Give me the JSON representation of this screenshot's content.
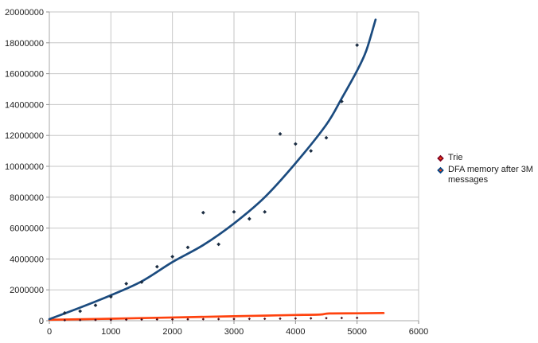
{
  "window": {
    "background": "#ffffff"
  },
  "chart_data": {
    "type": "scatter",
    "title": "",
    "xlabel": "",
    "ylabel": "",
    "x_axis": {
      "min": 0,
      "max": 6000,
      "tick_interval": 1000,
      "tick_labels": [
        "0",
        "1000",
        "2000",
        "3000",
        "4000",
        "5000",
        "6000"
      ]
    },
    "y_axis": {
      "min": 0,
      "max": 20000000,
      "tick_interval": 2000000,
      "tick_labels": [
        "0",
        "2000000",
        "4000000",
        "6000000",
        "8000000",
        "10000000",
        "12000000",
        "14000000",
        "16000000",
        "18000000",
        "20000000"
      ]
    },
    "grid": {
      "horizontal": true,
      "vertical": true,
      "color": "#c6c6c6",
      "axis_color": "#a9a9a9",
      "tick_color": "#8f8f8f",
      "label_color": "#1f1f1f"
    },
    "legend": {
      "position": "right",
      "items": [
        "Trie",
        "DFA memory after 3M messages"
      ]
    },
    "marker_center_color": "#ff420e",
    "series": [
      {
        "name": "Trie",
        "marker": "diamond",
        "marker_color": "#4a0d18",
        "legend_marker_color": "#7e0021",
        "points": [
          [
            250,
            30000
          ],
          [
            500,
            40000
          ],
          [
            750,
            50000
          ],
          [
            1000,
            60000
          ],
          [
            1250,
            70000
          ],
          [
            1500,
            80000
          ],
          [
            1750,
            85000
          ],
          [
            2000,
            90000
          ],
          [
            2250,
            95000
          ],
          [
            2500,
            100000
          ],
          [
            2750,
            105000
          ],
          [
            3000,
            110000
          ],
          [
            3250,
            120000
          ],
          [
            3500,
            125000
          ],
          [
            3750,
            135000
          ],
          [
            4000,
            145000
          ],
          [
            4250,
            155000
          ],
          [
            4500,
            165000
          ],
          [
            4750,
            175000
          ],
          [
            5000,
            185000
          ]
        ],
        "trend": {
          "color": "#ff420e",
          "points": [
            [
              0,
              60000
            ],
            [
              1000,
              130000
            ],
            [
              2000,
              210000
            ],
            [
              3000,
              290000
            ],
            [
              3500,
              330000
            ],
            [
              4000,
              370000
            ],
            [
              4400,
              400000
            ],
            [
              4550,
              470000
            ],
            [
              5000,
              480000
            ],
            [
              5430,
              500000
            ]
          ]
        }
      },
      {
        "name": "DFA memory after 3M messages",
        "marker": "diamond",
        "marker_color": "#1b2d42",
        "legend_marker_color": "#004586",
        "points": [
          [
            250,
            500000
          ],
          [
            500,
            620000
          ],
          [
            750,
            1000000
          ],
          [
            1000,
            1550000
          ],
          [
            1250,
            2400000
          ],
          [
            1500,
            2500000
          ],
          [
            1750,
            3500000
          ],
          [
            2000,
            4150000
          ],
          [
            2250,
            4750000
          ],
          [
            2500,
            7000000
          ],
          [
            2750,
            4950000
          ],
          [
            3000,
            7050000
          ],
          [
            3250,
            6600000
          ],
          [
            3500,
            7050000
          ],
          [
            3750,
            12100000
          ],
          [
            4000,
            11450000
          ],
          [
            4250,
            11000000
          ],
          [
            4500,
            11850000
          ],
          [
            4750,
            14200000
          ],
          [
            5000,
            17850000
          ]
        ],
        "trend": {
          "color": "#1b4b7f",
          "points": [
            [
              0,
              100000
            ],
            [
              500,
              850000
            ],
            [
              1000,
              1650000
            ],
            [
              1500,
              2550000
            ],
            [
              2000,
              3800000
            ],
            [
              2500,
              4900000
            ],
            [
              3000,
              6300000
            ],
            [
              3500,
              8000000
            ],
            [
              4000,
              10200000
            ],
            [
              4500,
              12700000
            ],
            [
              4750,
              14400000
            ],
            [
              5000,
              16200000
            ],
            [
              5150,
              17500000
            ],
            [
              5300,
              19500000
            ]
          ]
        }
      }
    ]
  }
}
